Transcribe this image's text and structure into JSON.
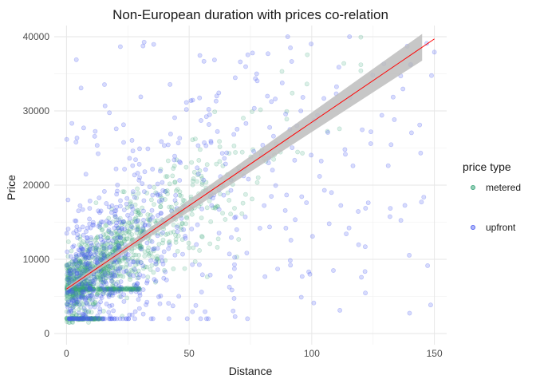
{
  "chart_data": {
    "type": "scatter",
    "title": "Non-European duration with prices co-relation",
    "xlabel": "Distance",
    "ylabel": "Price",
    "xlim": [
      -5,
      155
    ],
    "ylim": [
      -1500,
      41500
    ],
    "x_ticks": [
      0,
      50,
      100,
      150
    ],
    "y_ticks": [
      0,
      10000,
      20000,
      30000,
      40000
    ],
    "x_tick_labels": [
      "0",
      "50",
      "100",
      "150"
    ],
    "y_tick_labels": [
      "0",
      "10000",
      "20000",
      "30000",
      "40000"
    ],
    "grid": true,
    "legend": {
      "title": "price type",
      "position": "right",
      "entries": [
        "metered",
        "upfront"
      ]
    },
    "series": [
      {
        "name": "metered",
        "color": "#3aa57a",
        "opacity": 0.18,
        "approx_point_count": 1400,
        "description": "dense cluster at low distance; floors at prices 2000 and 6000"
      },
      {
        "name": "upfront",
        "color": "#4a5af0",
        "opacity": 0.22,
        "approx_point_count": 750,
        "description": "widely scattered across 0-150 distance and 0-40000 price"
      }
    ],
    "trend_line": {
      "color": "#ff0000",
      "band_color": "#bdbdbd",
      "x_start": 0,
      "y_start": 6000,
      "x_end": 150,
      "y_end": 39700,
      "band_end_x": 145
    }
  }
}
